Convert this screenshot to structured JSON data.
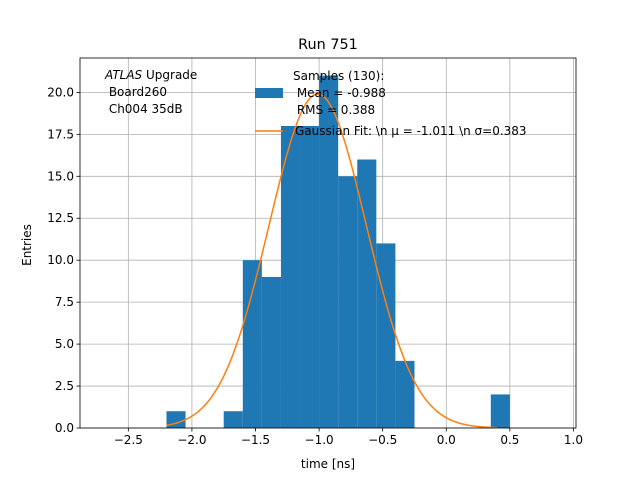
{
  "chart_data": {
    "type": "bar",
    "title": "Run 751",
    "xlabel": "time [ns]",
    "ylabel": "Entries",
    "xlim": [
      -2.88,
      1.02
    ],
    "ylim": [
      0,
      22.05
    ],
    "grid": true,
    "x_ticks": [
      -2.5,
      -2.0,
      -1.5,
      -1.0,
      -0.5,
      0.0,
      0.5,
      1.0
    ],
    "x_tick_labels": [
      "−2.5",
      "−2.0",
      "−1.5",
      "−1.0",
      "−0.5",
      "0.0",
      "0.5",
      "1.0"
    ],
    "y_ticks": [
      0,
      2.5,
      5,
      7.5,
      10,
      12.5,
      15,
      17.5,
      20
    ],
    "y_tick_labels": [
      "0.0",
      "2.5",
      "5.0",
      "7.5",
      "10.0",
      "12.5",
      "15.0",
      "17.5",
      "20.0"
    ],
    "histogram": {
      "color": "#1f77b4",
      "bin_edges": [
        -2.2,
        -2.05,
        -1.9,
        -1.75,
        -1.6,
        -1.45,
        -1.3,
        -1.15,
        -1.0,
        -0.85,
        -0.7,
        -0.55,
        -0.4,
        -0.25,
        -0.1,
        0.05,
        0.2,
        0.35,
        0.5
      ],
      "counts": [
        1,
        0,
        0,
        1,
        10,
        9,
        18,
        18,
        21,
        15,
        16,
        11,
        4,
        0,
        0,
        0,
        0,
        2
      ]
    },
    "fit": {
      "color": "#ff7f0e",
      "mu": -1.011,
      "sigma": 0.383,
      "peak": 19.9,
      "x_range": [
        -2.2,
        0.4
      ]
    },
    "annotation": {
      "line1_italic": "ATLAS",
      "line1_rest": " Upgrade",
      "line2": " Board260",
      "line3": " Ch004 35dB"
    },
    "legend": {
      "position": "top-right",
      "samples_line1": "Samples (130):",
      "samples_line2": " Mean = -0.988",
      "samples_line3": " RMS = 0.388",
      "fit_label": "Gaussian Fit: \\n μ = -1.011 \\n σ=0.383"
    }
  }
}
